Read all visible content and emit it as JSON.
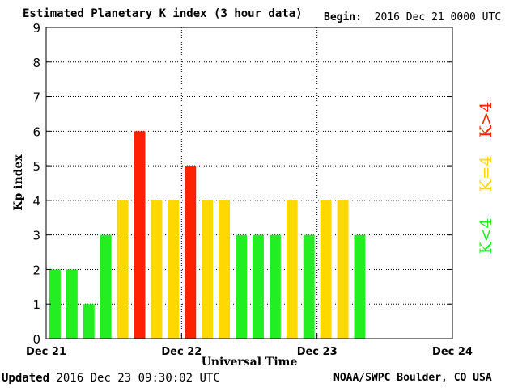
{
  "header": {
    "title": "Estimated Planetary K index (3 hour data)",
    "begin_label": "Begin:",
    "begin_value": "2016 Dec 21 0000 UTC"
  },
  "footer": {
    "updated_label": "Updated",
    "updated_value": "2016 Dec 23 09:30:02 UTC",
    "credit": "NOAA/SWPC Boulder, CO USA"
  },
  "legend": {
    "low": "K<4",
    "mid": "K=4",
    "high": "K>4"
  },
  "colors": {
    "low": "#22ee22",
    "mid": "#ffd800",
    "high": "#ff2200",
    "grid": "#000000"
  },
  "chart_data": {
    "type": "bar",
    "title": "Estimated Planetary K index (3 hour data)",
    "xlabel": "Universal Time",
    "ylabel": "Kp index",
    "ylim": [
      0,
      9
    ],
    "yticks": [
      0,
      1,
      2,
      3,
      4,
      5,
      6,
      7,
      8,
      9
    ],
    "xticks": [
      "Dec 21",
      "Dec 22",
      "Dec 23",
      "Dec 24"
    ],
    "slots_total": 24,
    "values": [
      2,
      2,
      1,
      3,
      4,
      6,
      4,
      4,
      5,
      4,
      4,
      3,
      3,
      3,
      4,
      3,
      4,
      4,
      3
    ],
    "grid": true
  }
}
